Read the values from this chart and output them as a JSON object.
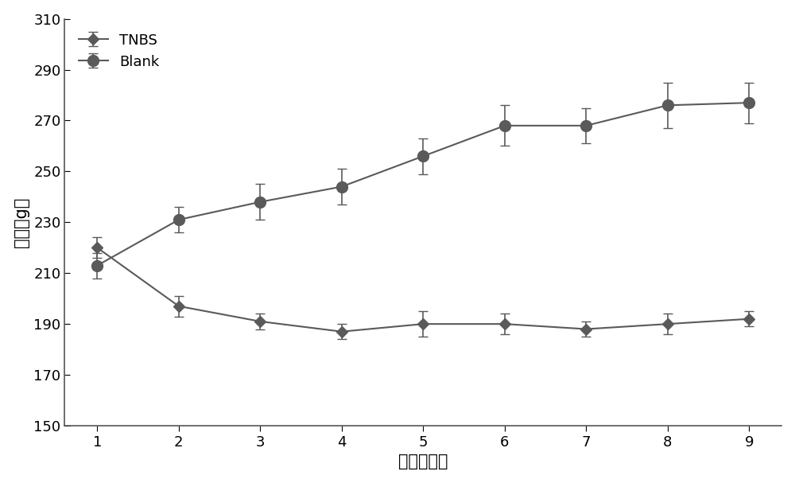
{
  "x": [
    1,
    2,
    3,
    4,
    5,
    6,
    7,
    8,
    9
  ],
  "tnbs_y": [
    220,
    197,
    191,
    187,
    190,
    190,
    188,
    190,
    192
  ],
  "tnbs_yerr": [
    4,
    4,
    3,
    3,
    5,
    4,
    3,
    4,
    3
  ],
  "blank_y": [
    213,
    231,
    238,
    244,
    256,
    268,
    268,
    276,
    277
  ],
  "blank_yerr": [
    5,
    5,
    7,
    7,
    7,
    8,
    7,
    9,
    8
  ],
  "tnbs_color": "#5a5a5a",
  "blank_color": "#5a5a5a",
  "xlabel": "时间（天）",
  "ylabel": "重量（g）",
  "ylim": [
    150,
    310
  ],
  "yticks": [
    150,
    170,
    190,
    210,
    230,
    250,
    270,
    290,
    310
  ],
  "xticks": [
    1,
    2,
    3,
    4,
    5,
    6,
    7,
    8,
    9
  ],
  "legend_tnbs": "TNBS",
  "legend_blank": "Blank",
  "label_fontsize": 15,
  "tick_fontsize": 13,
  "legend_fontsize": 13,
  "background_color": "#ffffff",
  "figure_facecolor": "#ffffff"
}
